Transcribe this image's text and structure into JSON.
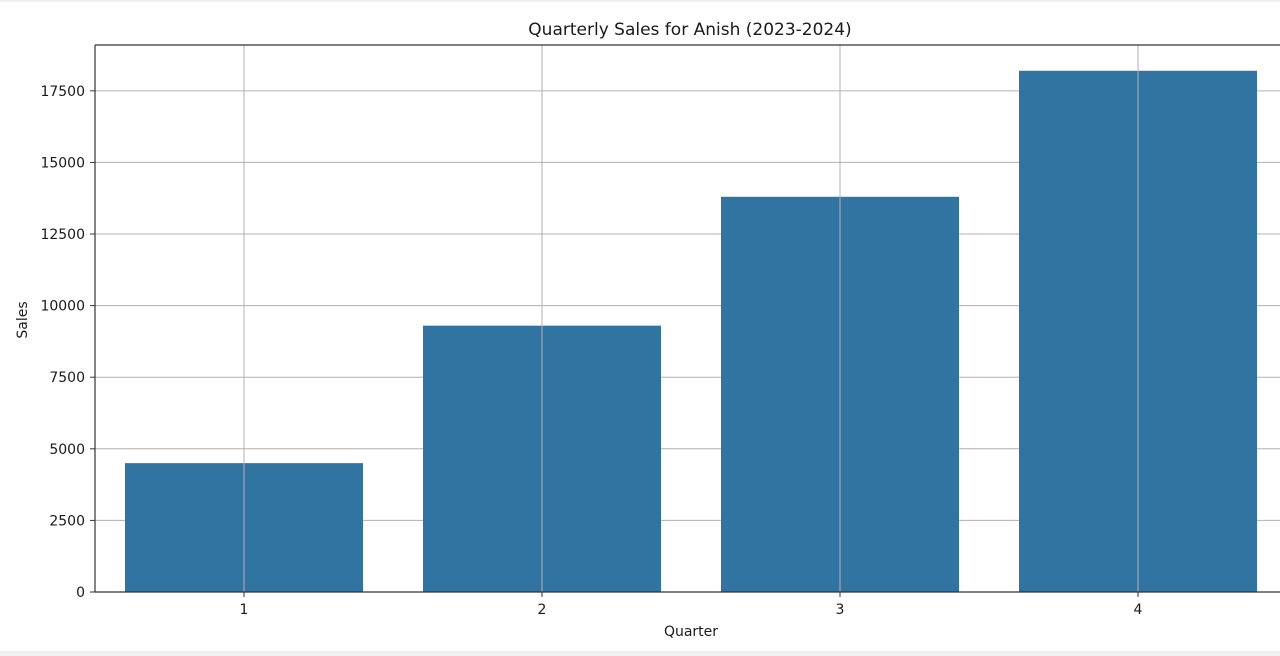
{
  "chart_data": {
    "type": "bar",
    "title": "Quarterly Sales for Anish (2023-2024)",
    "xlabel": "Quarter",
    "ylabel": "Sales",
    "categories": [
      "1",
      "2",
      "3",
      "4"
    ],
    "values": [
      4500,
      9300,
      13800,
      18200
    ],
    "ylim": [
      0,
      19100
    ],
    "yticks": [
      0,
      2500,
      5000,
      7500,
      10000,
      12500,
      15000,
      17500
    ],
    "ytick_labels": [
      "0",
      "2500",
      "5000",
      "7500",
      "10000",
      "12500",
      "15000",
      "17500"
    ],
    "grid": true,
    "legend": false,
    "colors": {
      "bar": "#3274a1",
      "grid": "#b0b0b0",
      "axis": "#333333",
      "text": "#1a1a1a"
    }
  }
}
